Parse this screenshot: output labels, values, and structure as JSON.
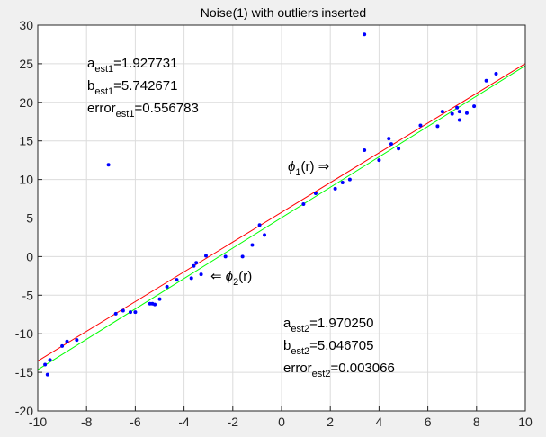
{
  "chart_data": {
    "type": "scatter",
    "title": "Noise(1) with outliers inserted",
    "xlabel": "",
    "ylabel": "",
    "xlim": [
      -10,
      10
    ],
    "ylim": [
      -20,
      30
    ],
    "xticks": [
      -10,
      -8,
      -6,
      -4,
      -2,
      0,
      2,
      4,
      6,
      8,
      10
    ],
    "yticks": [
      -20,
      -15,
      -10,
      -5,
      0,
      5,
      10,
      15,
      20,
      25,
      30
    ],
    "grid": true,
    "colors": {
      "points": "#0000ff",
      "fit1": "#ff0000",
      "fit2": "#00ff00",
      "grid": "#dcdcdc",
      "background": "#ffffff"
    },
    "series": [
      {
        "type": "scatter",
        "x": [
          -9.7,
          -9.6,
          -9.5,
          -9.0,
          -8.8,
          -8.4,
          -6.8,
          -6.5,
          -6.2,
          -6.0,
          -5.4,
          -5.3,
          -5.2,
          -5.0,
          -4.7,
          -4.3,
          -3.7,
          -3.6,
          -3.5,
          -3.3,
          -3.1,
          -2.3,
          -1.6,
          -1.2,
          -0.9,
          -0.7,
          0.9,
          1.4,
          2.2,
          2.5,
          2.8,
          3.4,
          3.4,
          4.0,
          4.4,
          4.5,
          4.8,
          5.7,
          6.4,
          6.6,
          7.0,
          7.2,
          7.3,
          7.3,
          7.6,
          7.9,
          8.4,
          8.8,
          -7.1
        ],
        "y": [
          -14.0,
          -15.3,
          -13.4,
          -11.6,
          -11.0,
          -10.8,
          -7.4,
          -7.0,
          -7.2,
          -7.2,
          -6.1,
          -6.1,
          -6.2,
          -5.5,
          -3.9,
          -3.0,
          -2.8,
          -1.2,
          -0.8,
          -2.3,
          0.1,
          0.0,
          0.0,
          1.5,
          4.1,
          2.8,
          6.8,
          8.2,
          8.8,
          9.6,
          10.0,
          28.8,
          13.8,
          12.5,
          15.3,
          14.6,
          14.0,
          17.0,
          16.9,
          18.8,
          18.5,
          19.3,
          18.8,
          17.7,
          18.6,
          19.5,
          22.8,
          23.7,
          11.9
        ]
      }
    ],
    "fits": [
      {
        "name": "φ1(r)",
        "a": 1.927731,
        "b": 5.742671
      },
      {
        "name": "φ2(r)",
        "a": 1.97025,
        "b": 5.046705
      }
    ],
    "annotations": {
      "est1": {
        "a_prefix": "a",
        "a_sub": "est1",
        "a_value": "=1.927731",
        "b_prefix": "b",
        "b_sub": "est1",
        "b_value": "=5.742671",
        "err_prefix": "error",
        "err_sub": "est1",
        "err_value": "=0.556783"
      },
      "est2": {
        "a_prefix": "a",
        "a_sub": "est2",
        "a_value": "=1.970250",
        "b_prefix": "b",
        "b_sub": "est2",
        "b_value": "=5.046705",
        "err_prefix": "error",
        "err_sub": "est2",
        "err_value": "=0.003066"
      },
      "phi1": {
        "symbol": "ϕ",
        "sub": "1",
        "arg": "(r)",
        "arrow": " ⇒"
      },
      "phi2": {
        "arrow": "⇐ ",
        "symbol": "ϕ",
        "sub": "2",
        "arg": "(r)"
      }
    }
  }
}
